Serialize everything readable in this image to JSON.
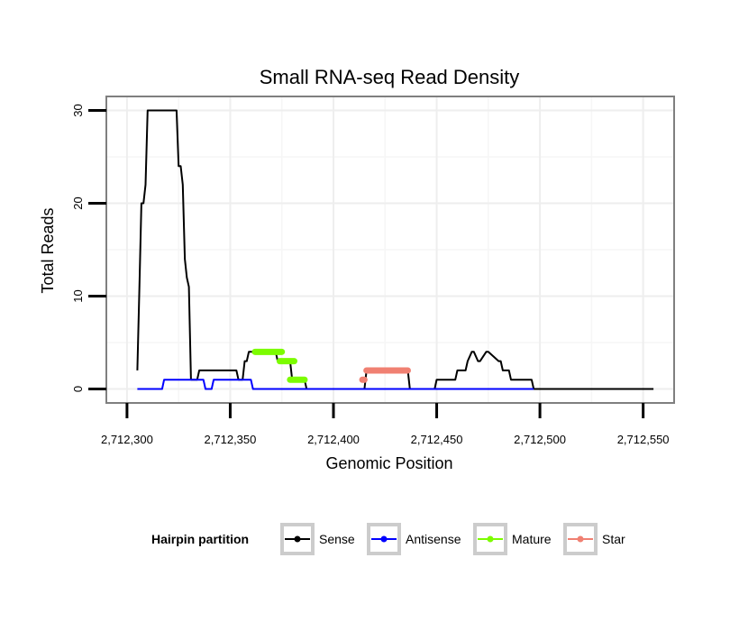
{
  "chart_data": {
    "type": "line",
    "title": "Small RNA-seq Read Density",
    "xlabel": "Genomic Position",
    "ylabel": "Total Reads",
    "xlim": [
      2712290,
      2712565
    ],
    "ylim": [
      -1.5,
      31.5
    ],
    "x_ticks": [
      2712300,
      2712350,
      2712400,
      2712450,
      2712500,
      2712550
    ],
    "x_tick_labels": [
      "2,712,300",
      "2,712,350",
      "2,712,400",
      "2,712,450",
      "2,712,500",
      "2,712,550"
    ],
    "y_ticks": [
      0,
      10,
      20,
      30
    ],
    "y_tick_labels": [
      "0",
      "10",
      "20",
      "30"
    ],
    "grid": true,
    "legend": {
      "title": "Hairpin partition",
      "position": "bottom",
      "entries": [
        "Sense",
        "Antisense",
        "Mature",
        "Star"
      ]
    },
    "series": [
      {
        "name": "Sense",
        "color": "#000000",
        "style": "line",
        "x": [
          2712305,
          2712306,
          2712307,
          2712308,
          2712309,
          2712310,
          2712324,
          2712325,
          2712326,
          2712327,
          2712328,
          2712329,
          2712330,
          2712331,
          2712332,
          2712333,
          2712334,
          2712335,
          2712336,
          2712353,
          2712354,
          2712356,
          2712357,
          2712358,
          2712359,
          2712372,
          2712373,
          2712375,
          2712376,
          2712379,
          2712380,
          2712386,
          2712387,
          2712415,
          2712416,
          2712436,
          2712437,
          2712449,
          2712450,
          2712459,
          2712460,
          2712464,
          2712465,
          2712467,
          2712468,
          2712470,
          2712471,
          2712474,
          2712475,
          2712480,
          2712481,
          2712482,
          2712483,
          2712485,
          2712486,
          2712487,
          2712488,
          2712496,
          2712497,
          2712555
        ],
        "y": [
          2,
          11,
          20,
          20,
          22,
          30,
          30,
          24,
          24,
          22,
          14,
          12,
          11,
          1,
          1,
          1,
          1,
          2,
          2,
          2,
          1,
          1,
          3,
          3,
          4,
          4,
          3,
          3,
          3,
          3,
          1,
          1,
          0,
          0,
          2,
          2,
          0,
          0,
          1,
          1,
          2,
          2,
          3,
          4,
          4,
          3,
          3,
          4,
          4,
          3,
          3,
          2,
          2,
          2,
          1,
          1,
          1,
          1,
          0,
          0
        ]
      },
      {
        "name": "Antisense",
        "color": "#0000ff",
        "style": "line",
        "x": [
          2712305,
          2712317,
          2712318,
          2712331,
          2712332,
          2712337,
          2712338,
          2712341,
          2712342,
          2712346,
          2712347,
          2712360,
          2712361,
          2712497
        ],
        "y": [
          0,
          0,
          1,
          1,
          1,
          1,
          0,
          0,
          1,
          1,
          1,
          1,
          0,
          0
        ]
      },
      {
        "name": "Mature",
        "color": "#7cfc00",
        "style": "segments",
        "x": [
          [
            2712362,
            2712375
          ],
          [
            2712374,
            2712381
          ],
          [
            2712379,
            2712386
          ]
        ],
        "y": [
          4,
          3,
          1
        ]
      },
      {
        "name": "Star",
        "color": "#f08072",
        "style": "segments",
        "x": [
          [
            2712414,
            2712415
          ],
          [
            2712416,
            2712436
          ]
        ],
        "y": [
          1,
          2
        ]
      }
    ]
  }
}
